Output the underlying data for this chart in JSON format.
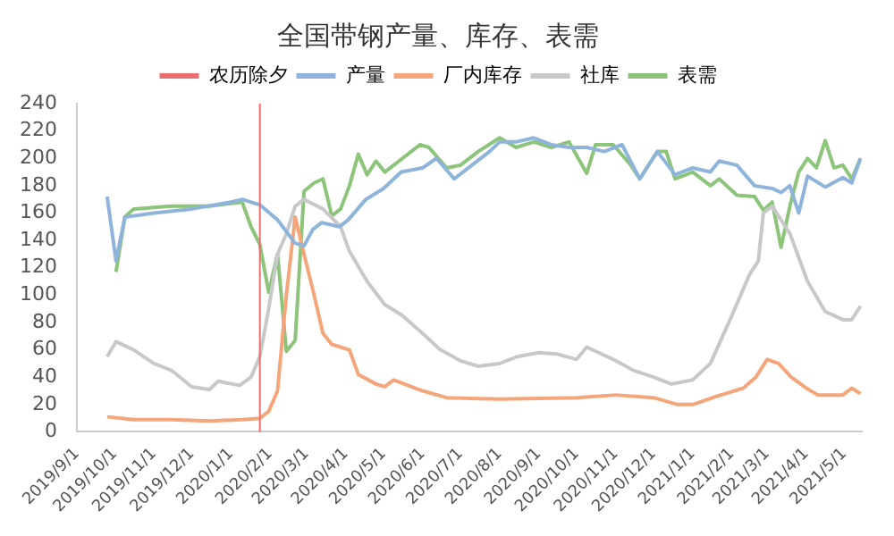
{
  "chart_data": {
    "type": "line",
    "title": "全国带钢产量、库存、表需",
    "xlim": [
      "2019-09-01",
      "2021-05-15"
    ],
    "xticks": [
      {
        "value": "2019-09-01",
        "label": "2019/9/1"
      },
      {
        "value": "2019-10-01",
        "label": "2019/10/1"
      },
      {
        "value": "2019-11-01",
        "label": "2019/11/1"
      },
      {
        "value": "2019-12-01",
        "label": "2019/12/1"
      },
      {
        "value": "2020-01-01",
        "label": "2020/1/1"
      },
      {
        "value": "2020-02-01",
        "label": "2020/2/1"
      },
      {
        "value": "2020-03-01",
        "label": "2020/3/1"
      },
      {
        "value": "2020-04-01",
        "label": "2020/4/1"
      },
      {
        "value": "2020-05-01",
        "label": "2020/5/1"
      },
      {
        "value": "2020-06-01",
        "label": "2020/6/1"
      },
      {
        "value": "2020-07-01",
        "label": "2020/7/1"
      },
      {
        "value": "2020-08-01",
        "label": "2020/8/1"
      },
      {
        "value": "2020-09-01",
        "label": "2020/9/1"
      },
      {
        "value": "2020-10-01",
        "label": "2020/10/1"
      },
      {
        "value": "2020-11-01",
        "label": "2020/11/1"
      },
      {
        "value": "2020-12-01",
        "label": "2020/12/1"
      },
      {
        "value": "2021-01-01",
        "label": "2021/1/1"
      },
      {
        "value": "2021-02-01",
        "label": "2021/2/1"
      },
      {
        "value": "2021-03-01",
        "label": "2021/3/1"
      },
      {
        "value": "2021-04-01",
        "label": "2021/4/1"
      },
      {
        "value": "2021-05-01",
        "label": "2021/5/1"
      }
    ],
    "ylim": [
      0,
      240
    ],
    "yticks": [
      0,
      20,
      40,
      60,
      80,
      100,
      120,
      140,
      160,
      180,
      200,
      220,
      240
    ],
    "grid": false,
    "legend": "top",
    "marker": "none",
    "line_style": "solid",
    "ref_lines": [
      {
        "axis": "x",
        "value": "2020-01-24",
        "label": "农历除夕",
        "color": "#e87070"
      }
    ],
    "series": [
      {
        "name": "产量",
        "color": "#8fb4dc",
        "x": [
          "2019-09-25",
          "2019-10-02",
          "2019-10-09",
          "2019-11-01",
          "2019-12-01",
          "2020-01-01",
          "2020-01-10",
          "2020-01-24",
          "2020-02-07",
          "2020-02-21",
          "2020-02-28",
          "2020-03-06",
          "2020-03-13",
          "2020-03-27",
          "2020-04-03",
          "2020-04-17",
          "2020-05-01",
          "2020-05-15",
          "2020-06-01",
          "2020-06-12",
          "2020-06-26",
          "2020-07-10",
          "2020-07-24",
          "2020-08-01",
          "2020-08-14",
          "2020-08-28",
          "2020-09-11",
          "2020-09-25",
          "2020-10-09",
          "2020-10-23",
          "2020-11-06",
          "2020-11-20",
          "2020-12-04",
          "2020-12-18",
          "2021-01-01",
          "2021-01-15",
          "2021-01-22",
          "2021-02-05",
          "2021-02-19",
          "2021-03-05",
          "2021-03-12",
          "2021-03-19",
          "2021-03-26",
          "2021-04-02",
          "2021-04-16",
          "2021-04-30",
          "2021-05-07",
          "2021-05-14"
        ],
        "values": [
          172,
          125,
          157,
          160,
          163,
          168,
          170,
          166,
          155,
          138,
          136,
          148,
          153,
          150,
          155,
          170,
          178,
          190,
          193,
          200,
          185,
          195,
          205,
          212,
          212,
          215,
          210,
          208,
          208,
          205,
          210,
          185,
          205,
          188,
          193,
          190,
          198,
          195,
          180,
          178,
          175,
          180,
          160,
          187,
          179,
          186,
          182,
          200
        ]
      },
      {
        "name": "厂内库存",
        "color": "#f4a57a",
        "x": [
          "2019-09-25",
          "2019-10-16",
          "2019-11-15",
          "2019-12-15",
          "2020-01-10",
          "2020-01-24",
          "2020-01-31",
          "2020-02-07",
          "2020-02-14",
          "2020-02-21",
          "2020-02-28",
          "2020-03-07",
          "2020-03-14",
          "2020-03-21",
          "2020-04-04",
          "2020-04-11",
          "2020-04-25",
          "2020-05-02",
          "2020-05-09",
          "2020-06-01",
          "2020-06-20",
          "2020-08-01",
          "2020-10-01",
          "2020-11-01",
          "2020-12-01",
          "2020-12-20",
          "2021-01-01",
          "2021-01-20",
          "2021-02-10",
          "2021-02-20",
          "2021-03-01",
          "2021-03-10",
          "2021-03-20",
          "2021-04-01",
          "2021-04-10",
          "2021-04-30",
          "2021-05-07",
          "2021-05-14"
        ],
        "values": [
          11,
          9,
          9,
          8,
          9,
          10,
          15,
          30,
          100,
          157,
          130,
          100,
          72,
          64,
          60,
          42,
          35,
          33,
          38,
          30,
          25,
          24,
          25,
          27,
          25,
          20,
          20,
          26,
          32,
          40,
          53,
          50,
          40,
          32,
          27,
          27,
          32,
          28
        ]
      },
      {
        "name": "社库",
        "color": "#c8c8c8",
        "x": [
          "2019-09-25",
          "2019-10-02",
          "2019-10-16",
          "2019-11-01",
          "2019-11-15",
          "2019-12-01",
          "2019-12-15",
          "2019-12-22",
          "2020-01-08",
          "2020-01-17",
          "2020-01-24",
          "2020-01-31",
          "2020-02-07",
          "2020-02-14",
          "2020-02-21",
          "2020-02-28",
          "2020-03-14",
          "2020-03-28",
          "2020-04-04",
          "2020-04-18",
          "2020-05-02",
          "2020-05-16",
          "2020-06-01",
          "2020-06-15",
          "2020-07-01",
          "2020-07-15",
          "2020-08-01",
          "2020-08-15",
          "2020-09-01",
          "2020-09-15",
          "2020-10-01",
          "2020-10-09",
          "2020-10-30",
          "2020-11-15",
          "2020-12-01",
          "2020-12-15",
          "2021-01-01",
          "2021-01-15",
          "2021-02-01",
          "2021-02-15",
          "2021-02-22",
          "2021-02-26",
          "2021-03-05",
          "2021-03-19",
          "2021-04-02",
          "2021-04-16",
          "2021-04-30",
          "2021-05-07",
          "2021-05-14"
        ],
        "values": [
          55,
          66,
          60,
          50,
          45,
          33,
          31,
          37,
          34,
          40,
          55,
          90,
          130,
          145,
          165,
          170,
          163,
          150,
          132,
          110,
          93,
          85,
          72,
          60,
          52,
          48,
          50,
          55,
          58,
          57,
          53,
          62,
          53,
          45,
          40,
          35,
          38,
          50,
          85,
          115,
          125,
          160,
          165,
          145,
          110,
          88,
          82,
          82,
          92
        ]
      },
      {
        "name": "表需",
        "color": "#8cc47a",
        "x": [
          "2019-10-02",
          "2019-10-09",
          "2019-10-16",
          "2019-11-15",
          "2019-12-15",
          "2020-01-10",
          "2020-01-17",
          "2020-01-24",
          "2020-01-31",
          "2020-02-07",
          "2020-02-14",
          "2020-02-21",
          "2020-02-28",
          "2020-03-07",
          "2020-03-14",
          "2020-03-21",
          "2020-03-28",
          "2020-04-04",
          "2020-04-11",
          "2020-04-18",
          "2020-04-25",
          "2020-05-02",
          "2020-05-16",
          "2020-05-30",
          "2020-06-06",
          "2020-06-20",
          "2020-07-01",
          "2020-07-15",
          "2020-08-01",
          "2020-08-14",
          "2020-08-28",
          "2020-09-11",
          "2020-09-25",
          "2020-10-09",
          "2020-10-16",
          "2020-10-30",
          "2020-11-13",
          "2020-11-20",
          "2020-12-04",
          "2020-12-11",
          "2020-12-18",
          "2021-01-01",
          "2021-01-15",
          "2021-01-22",
          "2021-02-05",
          "2021-02-19",
          "2021-02-26",
          "2021-03-05",
          "2021-03-12",
          "2021-03-19",
          "2021-03-26",
          "2021-04-02",
          "2021-04-09",
          "2021-04-16",
          "2021-04-23",
          "2021-04-30",
          "2021-05-07",
          "2021-05-14"
        ],
        "values": [
          117,
          157,
          163,
          165,
          165,
          168,
          150,
          137,
          102,
          130,
          59,
          67,
          176,
          182,
          185,
          158,
          163,
          180,
          203,
          188,
          198,
          190,
          200,
          210,
          208,
          193,
          195,
          205,
          215,
          208,
          212,
          208,
          212,
          189,
          210,
          210,
          195,
          185,
          205,
          205,
          185,
          190,
          180,
          185,
          173,
          172,
          162,
          168,
          135,
          165,
          190,
          200,
          193,
          213,
          193,
          195,
          185,
          200
        ]
      }
    ]
  }
}
